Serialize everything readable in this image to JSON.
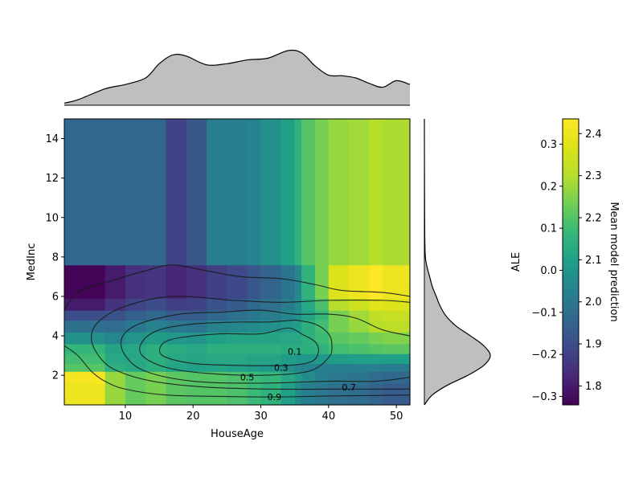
{
  "chart_data": {
    "type": "heatmap",
    "title": "",
    "xlabel": "HouseAge",
    "ylabel": "MedInc",
    "xlim": [
      1,
      52
    ],
    "ylim": [
      0.5,
      15
    ],
    "x_ticks": [
      10,
      20,
      30,
      40,
      50
    ],
    "y_ticks": [
      2,
      4,
      6,
      8,
      10,
      12,
      14
    ],
    "x_edges": [
      1,
      7,
      10,
      13,
      16,
      19,
      22,
      25,
      28,
      30,
      33,
      35,
      36,
      38,
      40,
      43,
      46,
      48,
      52
    ],
    "y_edges": [
      0.5,
      1.6,
      2.2,
      2.6,
      3.1,
      3.6,
      4.2,
      4.8,
      5.3,
      5.9,
      6.6,
      7.6,
      15
    ],
    "z_values": [
      [
        2.4,
        2.27,
        2.22,
        2.24,
        2.21,
        2.2,
        2.2,
        2.19,
        2.17,
        2.15,
        2.1,
        2.05,
        2.02,
        2.0,
        1.98,
        1.97,
        1.95,
        1.93
      ],
      [
        2.42,
        2.27,
        2.22,
        2.24,
        2.21,
        2.2,
        2.2,
        2.19,
        2.17,
        2.16,
        2.12,
        2.08,
        2.05,
        2.02,
        2.0,
        1.99,
        1.97,
        1.96
      ],
      [
        2.2,
        2.14,
        2.12,
        2.14,
        2.11,
        2.1,
        2.11,
        2.1,
        2.09,
        2.08,
        2.06,
        2.04,
        2.03,
        2.02,
        2.02,
        2.02,
        2.02,
        2.01
      ],
      [
        2.18,
        2.12,
        2.12,
        2.14,
        2.12,
        2.11,
        2.12,
        2.12,
        2.11,
        2.11,
        2.09,
        2.08,
        2.08,
        2.08,
        2.09,
        2.1,
        2.1,
        2.1
      ],
      [
        2.16,
        2.11,
        2.12,
        2.14,
        2.13,
        2.12,
        2.14,
        2.14,
        2.14,
        2.14,
        2.13,
        2.13,
        2.14,
        2.15,
        2.18,
        2.19,
        2.2,
        2.21
      ],
      [
        2.06,
        2.04,
        2.07,
        2.09,
        2.08,
        2.07,
        2.1,
        2.11,
        2.11,
        2.11,
        2.12,
        2.12,
        2.14,
        2.17,
        2.21,
        2.22,
        2.24,
        2.25
      ],
      [
        1.98,
        1.97,
        2.0,
        2.03,
        2.0,
        1.99,
        2.03,
        2.04,
        2.05,
        2.06,
        2.08,
        2.1,
        2.14,
        2.18,
        2.24,
        2.27,
        2.3,
        2.31
      ],
      [
        1.9,
        1.91,
        1.94,
        1.96,
        1.93,
        1.93,
        1.96,
        1.98,
        2.0,
        2.01,
        2.04,
        2.06,
        2.11,
        2.16,
        2.24,
        2.28,
        2.32,
        2.33
      ],
      [
        1.8,
        1.84,
        1.88,
        1.9,
        1.87,
        1.88,
        1.91,
        1.93,
        1.96,
        1.98,
        2.01,
        2.05,
        2.12,
        2.19,
        2.3,
        2.34,
        2.38,
        2.37
      ],
      [
        1.76,
        1.8,
        1.84,
        1.85,
        1.82,
        1.84,
        1.87,
        1.89,
        1.92,
        1.95,
        1.99,
        2.04,
        2.15,
        2.24,
        2.37,
        2.4,
        2.43,
        2.4
      ],
      [
        1.76,
        1.8,
        1.84,
        1.85,
        1.82,
        1.84,
        1.87,
        1.89,
        1.92,
        1.95,
        1.99,
        2.04,
        2.15,
        2.24,
        2.37,
        2.4,
        2.43,
        2.4
      ],
      [
        1.96,
        1.96,
        1.96,
        1.96,
        1.88,
        1.92,
        2.01,
        2.02,
        2.03,
        2.06,
        2.1,
        2.15,
        2.2,
        2.24,
        2.27,
        2.28,
        2.3,
        2.29
      ]
    ],
    "contours": [
      {
        "level": "0.1",
        "label_at": [
          35,
          3.2
        ],
        "points": [
          [
            36,
            4.1
          ],
          [
            38,
            3.7
          ],
          [
            38.5,
            3.2
          ],
          [
            37.5,
            2.7
          ],
          [
            34,
            2.5
          ],
          [
            27,
            2.5
          ],
          [
            20,
            2.6
          ],
          [
            15.5,
            3.0
          ],
          [
            15.5,
            3.6
          ],
          [
            18,
            3.9
          ],
          [
            24,
            4.1
          ],
          [
            30,
            4.1
          ],
          [
            34,
            4.4
          ],
          [
            36,
            4.1
          ]
        ]
      },
      {
        "level": "0.3",
        "label_at": [
          33,
          2.4
        ],
        "points": [
          [
            35,
            4.8
          ],
          [
            38,
            4.6
          ],
          [
            40,
            4.1
          ],
          [
            40.5,
            3.5
          ],
          [
            40,
            2.9
          ],
          [
            37,
            2.2
          ],
          [
            30,
            2.0
          ],
          [
            22,
            2.1
          ],
          [
            16,
            2.4
          ],
          [
            12.5,
            3.0
          ],
          [
            12.5,
            3.7
          ],
          [
            15,
            4.3
          ],
          [
            20,
            4.6
          ],
          [
            27,
            4.7
          ],
          [
            31,
            4.7
          ],
          [
            35,
            4.8
          ]
        ]
      },
      {
        "level": "0.5",
        "label_at": [
          28,
          1.9
        ],
        "points": [
          [
            52,
            4.0
          ],
          [
            48,
            4.3
          ],
          [
            44,
            4.9
          ],
          [
            40,
            5.1
          ],
          [
            35,
            5.1
          ],
          [
            30,
            5.3
          ],
          [
            24,
            5.2
          ],
          [
            18,
            5.1
          ],
          [
            12,
            4.6
          ],
          [
            9.5,
            3.9
          ],
          [
            10,
            3.0
          ],
          [
            13,
            2.2
          ],
          [
            20,
            1.7
          ],
          [
            30,
            1.6
          ],
          [
            40,
            1.7
          ],
          [
            47,
            1.7
          ],
          [
            52,
            1.9
          ]
        ]
      },
      {
        "level": "0.7",
        "label_at": [
          43,
          1.4
        ],
        "points": [
          [
            52,
            5.7
          ],
          [
            48,
            5.8
          ],
          [
            40,
            5.8
          ],
          [
            33,
            5.7
          ],
          [
            26,
            5.8
          ],
          [
            17,
            6.0
          ],
          [
            10,
            5.5
          ],
          [
            6,
            4.7
          ],
          [
            5,
            3.8
          ],
          [
            6.5,
            2.8
          ],
          [
            9,
            2.2
          ],
          [
            14,
            1.7
          ],
          [
            22,
            1.4
          ],
          [
            32,
            1.3
          ],
          [
            42,
            1.3
          ],
          [
            48,
            1.3
          ],
          [
            52,
            1.3
          ]
        ]
      },
      {
        "level": "0.9",
        "label_at": [
          32,
          0.9
        ],
        "points": [
          [
            52,
            1.0
          ],
          [
            48,
            0.98
          ],
          [
            40,
            0.95
          ],
          [
            32,
            0.9
          ],
          [
            24,
            0.93
          ],
          [
            16,
            1.0
          ],
          [
            10,
            1.3
          ],
          [
            7,
            1.7
          ],
          [
            5,
            2.2
          ],
          [
            3,
            3.0
          ],
          [
            1,
            3.5
          ]
        ]
      },
      {
        "level": "",
        "label_at": null,
        "points": [
          [
            1,
            5.3
          ],
          [
            3,
            6.2
          ],
          [
            8,
            6.8
          ],
          [
            13,
            7.3
          ],
          [
            17,
            7.6
          ],
          [
            22,
            7.3
          ],
          [
            27,
            7.0
          ],
          [
            33,
            6.9
          ],
          [
            38,
            6.6
          ],
          [
            42,
            6.3
          ],
          [
            48,
            6.2
          ],
          [
            52,
            6.0
          ]
        ]
      }
    ],
    "marginal_x": {
      "type": "area",
      "x": [
        1,
        3,
        7,
        10,
        13,
        15,
        17,
        19,
        22,
        25,
        28,
        31,
        34,
        36,
        38,
        40,
        42,
        44,
        46,
        48,
        50,
        52
      ],
      "density": [
        0.04,
        0.1,
        0.3,
        0.38,
        0.5,
        0.76,
        0.92,
        0.9,
        0.74,
        0.76,
        0.83,
        0.86,
        1.0,
        0.96,
        0.72,
        0.55,
        0.54,
        0.5,
        0.4,
        0.33,
        0.45,
        0.38
      ]
    },
    "marginal_y": {
      "type": "area",
      "y": [
        0.5,
        1.0,
        1.5,
        2.0,
        2.5,
        3.0,
        3.5,
        4.0,
        4.5,
        5.0,
        5.5,
        6.0,
        6.5,
        7.0,
        7.5,
        8.0,
        9.0,
        11.0,
        13.0,
        15.0
      ],
      "density": [
        0.0,
        0.12,
        0.35,
        0.66,
        0.9,
        1.0,
        0.9,
        0.7,
        0.48,
        0.33,
        0.24,
        0.18,
        0.12,
        0.08,
        0.04,
        0.015,
        0.006,
        0.003,
        0.001,
        0.0
      ]
    },
    "colorbar": {
      "colormap": "viridis",
      "left_label": "ALE",
      "right_label": "Mean model prediction",
      "left_range": [
        -0.32,
        0.36
      ],
      "left_ticks": [
        "0.3",
        "0.2",
        "0.1",
        "0.0",
        "−0.1",
        "−0.2",
        "−0.3"
      ],
      "left_tick_values": [
        0.3,
        0.2,
        0.1,
        0.0,
        -0.1,
        -0.2,
        -0.3
      ],
      "right_range": [
        1.755,
        2.435
      ],
      "right_ticks": [
        "2.4",
        "2.3",
        "2.2",
        "2.1",
        "2.0",
        "1.9",
        "1.8"
      ],
      "right_tick_values": [
        2.4,
        2.3,
        2.2,
        2.1,
        2.0,
        1.9,
        1.8
      ]
    }
  }
}
